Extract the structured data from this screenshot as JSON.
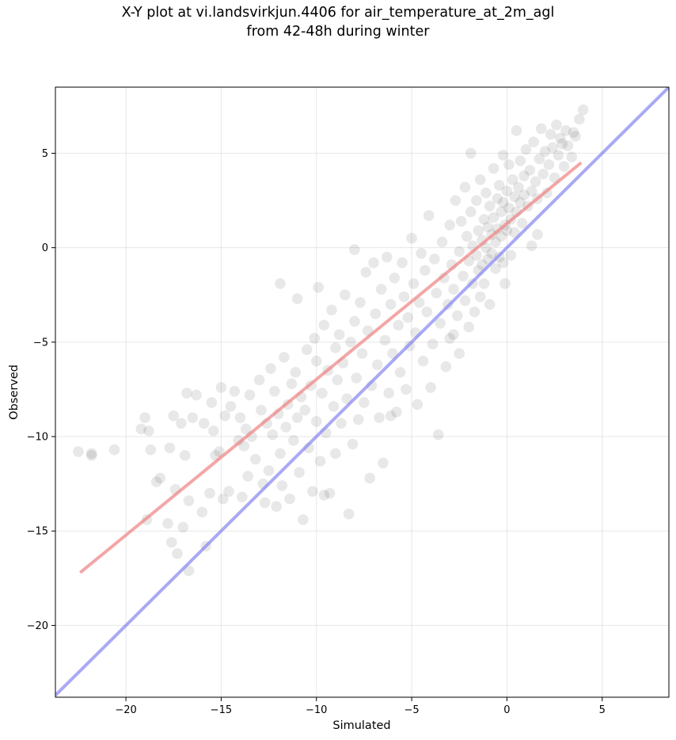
{
  "title": {
    "line1": "X-Y plot at vi.landsvirkjun.4406 for air_temperature_at_2m_agl",
    "line2": "from 42-48h during winter"
  },
  "chart_data": {
    "type": "scatter",
    "xlabel": "Simulated",
    "ylabel": "Observed",
    "xlim": [
      -23.7,
      8.5
    ],
    "ylim": [
      -23.8,
      8.5
    ],
    "xticks": [
      -20,
      -15,
      -10,
      -5,
      0,
      5
    ],
    "yticks": [
      -20,
      -15,
      -10,
      -5,
      0,
      5
    ],
    "xtick_labels": [
      "−20",
      "−15",
      "−10",
      "−5",
      "0",
      "5"
    ],
    "ytick_labels": [
      "−20",
      "−15",
      "−10",
      "−5",
      "0",
      "5"
    ],
    "grid": true,
    "colors": {
      "points": "#000000",
      "fit_line": "#f08080",
      "identity_line": "#7b7bf0"
    },
    "fit_line": {
      "x": [
        -22.4,
        3.9
      ],
      "y": [
        -17.2,
        4.5
      ]
    },
    "identity_line": {
      "x": [
        -23.7,
        8.5
      ],
      "y": [
        -23.7,
        8.5
      ]
    },
    "series": [
      {
        "values": [
          [
            -22.5,
            -10.8
          ],
          [
            -21.8,
            -10.9
          ],
          [
            -21.8,
            -11.0
          ],
          [
            -20.6,
            -10.7
          ],
          [
            -19.2,
            -9.6
          ],
          [
            -19.0,
            -9.0
          ],
          [
            -18.8,
            -9.7
          ],
          [
            -18.9,
            -14.4
          ],
          [
            -18.7,
            -10.7
          ],
          [
            -18.4,
            -12.4
          ],
          [
            -18.2,
            -12.2
          ],
          [
            -17.8,
            -14.6
          ],
          [
            -17.6,
            -15.6
          ],
          [
            -17.5,
            -8.9
          ],
          [
            -17.7,
            -10.6
          ],
          [
            -17.4,
            -12.8
          ],
          [
            -17.3,
            -16.2
          ],
          [
            -17.1,
            -9.3
          ],
          [
            -17.0,
            -14.8
          ],
          [
            -16.9,
            -11.0
          ],
          [
            -16.8,
            -7.7
          ],
          [
            -16.7,
            -13.4
          ],
          [
            -16.7,
            -17.1
          ],
          [
            -16.5,
            -9.0
          ],
          [
            -16.3,
            -7.8
          ],
          [
            -16.0,
            -14.0
          ],
          [
            -15.9,
            -9.3
          ],
          [
            -15.8,
            -15.8
          ],
          [
            -15.6,
            -13.0
          ],
          [
            -15.5,
            -8.2
          ],
          [
            -15.4,
            -9.7
          ],
          [
            -15.3,
            -11.0
          ],
          [
            -15.1,
            -10.8
          ],
          [
            -15.0,
            -7.4
          ],
          [
            -14.9,
            -13.3
          ],
          [
            -14.8,
            -8.9
          ],
          [
            -14.6,
            -12.9
          ],
          [
            -14.5,
            -8.4
          ],
          [
            -14.3,
            -7.6
          ],
          [
            -14.1,
            -10.2
          ],
          [
            -14.0,
            -9.0
          ],
          [
            -13.9,
            -13.2
          ],
          [
            -13.8,
            -10.5
          ],
          [
            -13.7,
            -9.6
          ],
          [
            -13.6,
            -12.1
          ],
          [
            -13.5,
            -7.8
          ],
          [
            -13.4,
            -10.0
          ],
          [
            -13.2,
            -11.2
          ],
          [
            -13.0,
            -7.0
          ],
          [
            -12.9,
            -8.6
          ],
          [
            -12.8,
            -12.5
          ],
          [
            -12.7,
            -13.5
          ],
          [
            -12.6,
            -9.3
          ],
          [
            -12.5,
            -11.8
          ],
          [
            -12.4,
            -6.4
          ],
          [
            -12.3,
            -9.9
          ],
          [
            -12.2,
            -7.6
          ],
          [
            -12.1,
            -13.7
          ],
          [
            -12.0,
            -8.8
          ],
          [
            -11.9,
            -10.9
          ],
          [
            -11.9,
            -1.9
          ],
          [
            -11.8,
            -12.6
          ],
          [
            -11.7,
            -5.8
          ],
          [
            -11.6,
            -9.5
          ],
          [
            -11.5,
            -8.3
          ],
          [
            -11.4,
            -13.3
          ],
          [
            -11.3,
            -7.2
          ],
          [
            -11.2,
            -10.2
          ],
          [
            -11.1,
            -6.6
          ],
          [
            -11.0,
            -9.0
          ],
          [
            -11.0,
            -2.7
          ],
          [
            -10.9,
            -11.9
          ],
          [
            -10.8,
            -7.9
          ],
          [
            -10.7,
            -14.4
          ],
          [
            -10.6,
            -8.6
          ],
          [
            -10.5,
            -5.4
          ],
          [
            -10.4,
            -10.6
          ],
          [
            -10.3,
            -7.3
          ],
          [
            -10.2,
            -12.9
          ],
          [
            -10.1,
            -4.8
          ],
          [
            -10.0,
            -9.2
          ],
          [
            -10.0,
            -6.0
          ],
          [
            -9.9,
            -2.1
          ],
          [
            -9.8,
            -11.3
          ],
          [
            -9.7,
            -7.7
          ],
          [
            -9.6,
            -4.1
          ],
          [
            -9.5,
            -9.8
          ],
          [
            -9.4,
            -6.5
          ],
          [
            -9.3,
            -13.0
          ],
          [
            -9.2,
            -3.3
          ],
          [
            -9.1,
            -8.4
          ],
          [
            -9.0,
            -5.3
          ],
          [
            -9.0,
            -10.9
          ],
          [
            -8.9,
            -7.0
          ],
          [
            -8.8,
            -4.6
          ],
          [
            -8.7,
            -9.3
          ],
          [
            -8.6,
            -6.1
          ],
          [
            -8.5,
            -2.5
          ],
          [
            -8.4,
            -8.0
          ],
          [
            -8.3,
            -14.1
          ],
          [
            -8.2,
            -5.0
          ],
          [
            -8.1,
            -10.4
          ],
          [
            -8.0,
            -3.9
          ],
          [
            -8.0,
            -0.1
          ],
          [
            -7.9,
            -6.9
          ],
          [
            -7.8,
            -9.1
          ],
          [
            -7.7,
            -2.9
          ],
          [
            -7.6,
            -5.6
          ],
          [
            -7.5,
            -8.2
          ],
          [
            -7.4,
            -1.3
          ],
          [
            -7.3,
            -4.4
          ],
          [
            -7.2,
            -12.2
          ],
          [
            -7.1,
            -7.3
          ],
          [
            -7.0,
            -0.8
          ],
          [
            -6.9,
            -3.5
          ],
          [
            -6.8,
            -6.2
          ],
          [
            -6.7,
            -9.0
          ],
          [
            -6.6,
            -2.2
          ],
          [
            -6.5,
            -11.4
          ],
          [
            -6.4,
            -4.9
          ],
          [
            -6.3,
            -0.5
          ],
          [
            -6.2,
            -7.7
          ],
          [
            -6.1,
            -3.0
          ],
          [
            -6.0,
            -5.6
          ],
          [
            -5.9,
            -1.6
          ],
          [
            -5.8,
            -8.7
          ],
          [
            -5.7,
            -4.1
          ],
          [
            -5.6,
            -6.6
          ],
          [
            -5.5,
            -0.8
          ],
          [
            -5.4,
            -2.6
          ],
          [
            -5.3,
            -7.5
          ],
          [
            -5.2,
            -3.7
          ],
          [
            -5.1,
            -5.2
          ],
          [
            -5.0,
            0.5
          ],
          [
            -4.9,
            -1.9
          ],
          [
            -4.8,
            -4.5
          ],
          [
            -4.7,
            -8.3
          ],
          [
            -4.6,
            -2.9
          ],
          [
            -4.5,
            -0.3
          ],
          [
            -4.4,
            -6.0
          ],
          [
            -4.3,
            -1.2
          ],
          [
            -4.2,
            -3.4
          ],
          [
            -4.1,
            1.7
          ],
          [
            -4.0,
            -7.4
          ],
          [
            -3.9,
            -5.1
          ],
          [
            -3.8,
            -0.6
          ],
          [
            -3.7,
            -2.4
          ],
          [
            -3.6,
            -9.9
          ],
          [
            -3.5,
            -4.0
          ],
          [
            -3.4,
            0.3
          ],
          [
            -3.3,
            -1.6
          ],
          [
            -3.2,
            -6.3
          ],
          [
            -3.1,
            -3.0
          ],
          [
            -3.0,
            1.2
          ],
          [
            -3.0,
            -4.8
          ],
          [
            -2.9,
            -0.9
          ],
          [
            -2.8,
            -2.2
          ],
          [
            -2.7,
            2.5
          ],
          [
            -2.6,
            -3.6
          ],
          [
            -2.5,
            -0.2
          ],
          [
            -2.5,
            -5.6
          ],
          [
            -2.4,
            1.4
          ],
          [
            -2.3,
            -1.5
          ],
          [
            -2.2,
            3.2
          ],
          [
            -2.2,
            -2.8
          ],
          [
            -2.1,
            0.6
          ],
          [
            -2.0,
            -4.2
          ],
          [
            -2.0,
            -0.7
          ],
          [
            -1.9,
            5.0
          ],
          [
            -1.9,
            1.9
          ],
          [
            -1.8,
            -1.9
          ],
          [
            -1.8,
            0.1
          ],
          [
            -1.7,
            -3.4
          ],
          [
            -1.6,
            2.5
          ],
          [
            -1.6,
            -0.4
          ],
          [
            -1.5,
            -1.2
          ],
          [
            -1.5,
            0.9
          ],
          [
            -1.4,
            -2.6
          ],
          [
            -1.4,
            3.6
          ],
          [
            -1.3,
            0.4
          ],
          [
            -1.3,
            -0.9
          ],
          [
            -1.2,
            1.5
          ],
          [
            -1.2,
            -1.9
          ],
          [
            -1.1,
            2.9
          ],
          [
            -1.1,
            0.0
          ],
          [
            -1.0,
            -0.6
          ],
          [
            -1.0,
            1.1
          ],
          [
            -0.9,
            -3.0
          ],
          [
            -0.9,
            2.2
          ],
          [
            -0.8,
            0.7
          ],
          [
            -0.8,
            -0.3
          ],
          [
            -0.7,
            4.2
          ],
          [
            -0.7,
            1.6
          ],
          [
            -0.6,
            -1.1
          ],
          [
            -0.6,
            0.3
          ],
          [
            -0.5,
            2.6
          ],
          [
            -0.5,
            1.0
          ],
          [
            -0.4,
            -0.5
          ],
          [
            -0.4,
            3.3
          ],
          [
            -0.3,
            1.9
          ],
          [
            -0.3,
            0.6
          ],
          [
            -0.2,
            4.9
          ],
          [
            -0.2,
            2.4
          ],
          [
            -0.1,
            1.2
          ],
          [
            -0.1,
            -1.9
          ],
          [
            0.0,
            3.0
          ],
          [
            0.0,
            0.9
          ],
          [
            0.1,
            2.1
          ],
          [
            0.1,
            4.4
          ],
          [
            0.2,
            1.5
          ],
          [
            0.2,
            -0.4
          ],
          [
            0.3,
            3.6
          ],
          [
            0.4,
            2.7
          ],
          [
            0.4,
            0.8
          ],
          [
            0.5,
            6.2
          ],
          [
            0.5,
            1.9
          ],
          [
            0.6,
            3.2
          ],
          [
            0.7,
            2.4
          ],
          [
            0.7,
            4.6
          ],
          [
            0.8,
            1.3
          ],
          [
            0.9,
            3.8
          ],
          [
            0.9,
            2.8
          ],
          [
            1.0,
            5.2
          ],
          [
            1.1,
            2.2
          ],
          [
            1.2,
            4.1
          ],
          [
            1.3,
            3.0
          ],
          [
            1.3,
            0.1
          ],
          [
            1.4,
            5.6
          ],
          [
            1.5,
            3.5
          ],
          [
            1.6,
            2.6
          ],
          [
            1.7,
            4.7
          ],
          [
            1.8,
            6.3
          ],
          [
            1.9,
            3.9
          ],
          [
            2.0,
            5.1
          ],
          [
            2.1,
            2.9
          ],
          [
            2.2,
            4.4
          ],
          [
            2.3,
            6.0
          ],
          [
            2.4,
            5.3
          ],
          [
            2.5,
            3.7
          ],
          [
            2.6,
            6.5
          ],
          [
            2.7,
            4.9
          ],
          [
            2.8,
            5.8
          ],
          [
            3.0,
            4.3
          ],
          [
            3.1,
            6.2
          ],
          [
            3.2,
            5.4
          ],
          [
            3.4,
            4.8
          ],
          [
            3.6,
            5.9
          ],
          [
            3.8,
            6.8
          ],
          [
            4.0,
            7.3
          ],
          [
            3.5,
            6.1
          ],
          [
            2.9,
            5.5
          ],
          [
            1.6,
            0.7
          ],
          [
            -0.2,
            -0.8
          ],
          [
            -2.8,
            -4.6
          ],
          [
            -6.1,
            -8.9
          ],
          [
            -9.6,
            -13.1
          ]
        ]
      }
    ]
  }
}
